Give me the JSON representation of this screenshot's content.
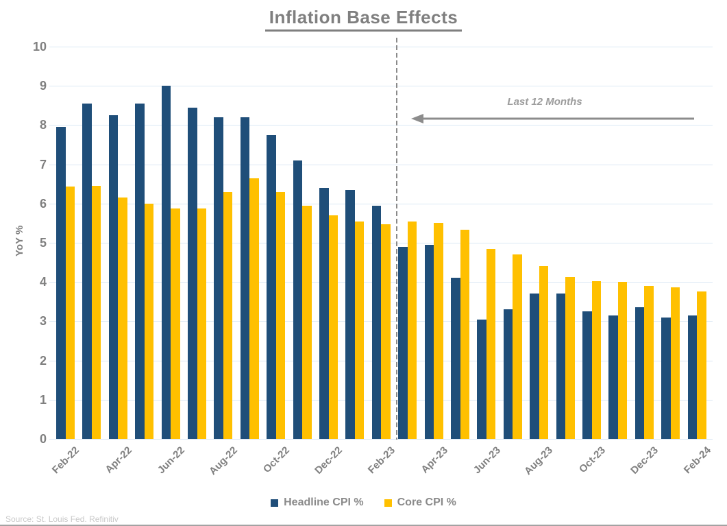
{
  "title": "Inflation Base Effects",
  "y_axis": {
    "title": "YoY %"
  },
  "annotation": {
    "text": "Last 12 Months"
  },
  "legend": {
    "headline": "Headline CPI %",
    "core": "Core CPI %"
  },
  "source": "Source: St. Louis Fed. Refinitiv",
  "colors": {
    "headline": "#1F4E79",
    "core": "#FFC000",
    "gridline": "#DBE8F4",
    "axis_text": "#808080",
    "divider": "#8A8A8A",
    "annotation_text": "#9C9C9C",
    "source_text": "#C9C9C9"
  },
  "chart_data": {
    "type": "bar",
    "title": "Inflation Base Effects",
    "xlabel": "",
    "ylabel": "YoY %",
    "ylim": [
      0,
      10
    ],
    "y_ticks": [
      0,
      1,
      2,
      3,
      4,
      5,
      6,
      7,
      8,
      9,
      10
    ],
    "grid": "horizontal",
    "legend_position": "bottom",
    "categories": [
      "Feb-22",
      "Mar-22",
      "Apr-22",
      "May-22",
      "Jun-22",
      "Jul-22",
      "Aug-22",
      "Sep-22",
      "Oct-22",
      "Nov-22",
      "Dec-22",
      "Jan-23",
      "Feb-23",
      "Mar-23",
      "Apr-23",
      "May-23",
      "Jun-23",
      "Jul-23",
      "Aug-23",
      "Sep-23",
      "Oct-23",
      "Nov-23",
      "Dec-23",
      "Jan-24",
      "Feb-24"
    ],
    "x_tick_labels": [
      "Feb-22",
      "Apr-22",
      "Jun-22",
      "Aug-22",
      "Oct-22",
      "Dec-22",
      "Feb-23",
      "Apr-23",
      "Jun-23",
      "Aug-23",
      "Oct-23",
      "Dec-23",
      "Feb-24"
    ],
    "series": [
      {
        "name": "Headline CPI %",
        "color": "#1F4E79",
        "values": [
          7.95,
          8.55,
          8.25,
          8.55,
          9.0,
          8.45,
          8.2,
          8.2,
          7.75,
          7.1,
          6.4,
          6.35,
          5.95,
          4.9,
          4.95,
          4.1,
          3.05,
          3.3,
          3.7,
          3.7,
          3.25,
          3.15,
          3.35,
          3.1,
          3.15
        ]
      },
      {
        "name": "Core CPI %",
        "color": "#FFC000",
        "values": [
          6.43,
          6.45,
          6.15,
          6.0,
          5.88,
          5.88,
          6.3,
          6.65,
          6.3,
          5.95,
          5.7,
          5.55,
          5.47,
          5.55,
          5.5,
          5.33,
          4.85,
          4.7,
          4.4,
          4.13,
          4.02,
          4.0,
          3.9,
          3.86,
          3.76
        ]
      }
    ],
    "annotations": {
      "divider_between": [
        "Feb-23",
        "Mar-23"
      ],
      "arrow_label": "Last 12 Months",
      "arrow_direction": "left"
    }
  }
}
